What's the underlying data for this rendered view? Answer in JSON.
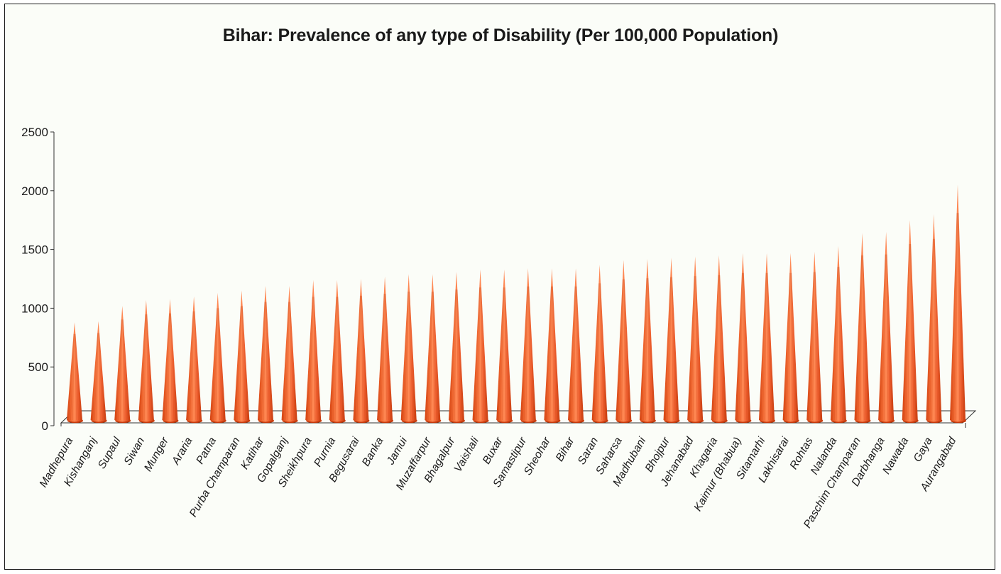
{
  "chart_data": {
    "type": "bar",
    "title": "Bihar: Prevalence of any type of Disability (Per 100,000 Population)",
    "xlabel": "",
    "ylabel": "",
    "ylim": [
      0,
      2500
    ],
    "yticks": [
      0,
      500,
      1000,
      1500,
      2000,
      2500
    ],
    "grid": false,
    "bar_shape": "cone",
    "bar_color": "#e84e1b",
    "categories": [
      "Madhepura",
      "Kishanganj",
      "Supaul",
      "Siwan",
      "Munger",
      "Araria",
      "Patna",
      "Purba Champaran",
      "Katihar",
      "Gopalganj",
      "Sheikhpura",
      "Purnia",
      "Begusarai",
      "Banka",
      "Jamui",
      "Muzaffarpur",
      "Bhagalpur",
      "Vaishali",
      "Buxar",
      "Samastipur",
      "Sheohar",
      "Bihar",
      "Saran",
      "Saharsa",
      "Madhubani",
      "Bhojpur",
      "Jehanabad",
      "Khagaria",
      "Kaimur (Bhabua)",
      "Sitamarhi",
      "Lakhisarai",
      "Rohtas",
      "Nalanda",
      "Paschim Champaran",
      "Darbhanga",
      "Nawada",
      "Gaya",
      "Aurangabad"
    ],
    "values": [
      880,
      890,
      1020,
      1070,
      1080,
      1100,
      1130,
      1150,
      1190,
      1190,
      1240,
      1240,
      1250,
      1270,
      1290,
      1290,
      1310,
      1330,
      1330,
      1340,
      1340,
      1340,
      1370,
      1410,
      1420,
      1430,
      1440,
      1450,
      1470,
      1470,
      1470,
      1480,
      1530,
      1640,
      1650,
      1750,
      1800,
      2050
    ]
  }
}
